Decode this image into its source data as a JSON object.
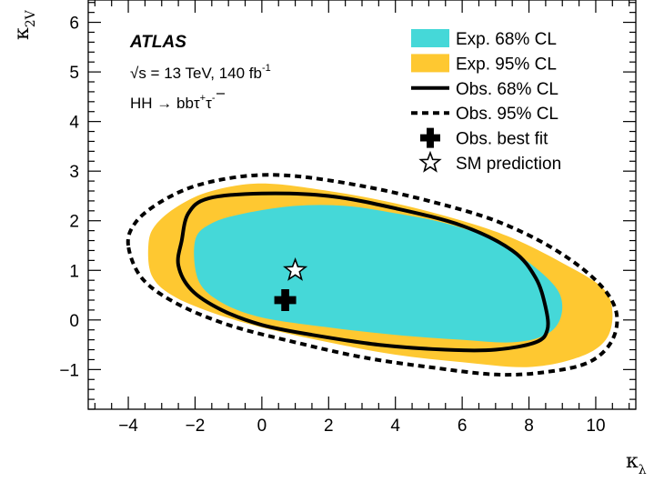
{
  "chart_data": {
    "type": "contour",
    "experiment": "ATLAS",
    "energy_line": "√s  = 13 TeV, 140 fb",
    "lumi_exponent": "-1",
    "process_prefix": "HH → b",
    "process_b_bar": "b",
    "process_tau": "τ",
    "process_plus": "+",
    "process_minus": "-",
    "xlabel": "κ",
    "xlabel_sub": "λ",
    "ylabel": "κ",
    "ylabel_sub": "2V",
    "xlim": [
      -5.2,
      11.2
    ],
    "ylim": [
      -1.8,
      6.45
    ],
    "x_ticks": [
      -4,
      -2,
      0,
      2,
      4,
      6,
      8,
      10
    ],
    "x_tick_labels": [
      "−4",
      "−2",
      "0",
      "2",
      "4",
      "6",
      "8",
      "10"
    ],
    "y_ticks": [
      -1,
      0,
      1,
      2,
      3,
      4,
      5,
      6
    ],
    "y_tick_labels": [
      "−1",
      "0",
      "1",
      "2",
      "3",
      "4",
      "5",
      "6"
    ],
    "legend": {
      "position": "top-right",
      "entries": [
        {
          "label": "Exp. 68% CL",
          "style": "fill",
          "color": "#45d8d8"
        },
        {
          "label": "Exp. 95% CL",
          "style": "fill",
          "color": "#fec831"
        },
        {
          "label": "Obs. 68% CL",
          "style": "solid-line",
          "color": "#000000"
        },
        {
          "label": "Obs. 95% CL",
          "style": "dashed-line",
          "color": "#000000"
        },
        {
          "label": "Obs. best fit",
          "style": "cross-marker",
          "color": "#000000"
        },
        {
          "label": "SM prediction",
          "style": "star-marker",
          "color": "#000000"
        }
      ]
    },
    "best_fit": {
      "x": 0.7,
      "y": 0.4
    },
    "sm_prediction": {
      "x": 1.0,
      "y": 1.0
    },
    "contours": {
      "exp95": [
        [
          -3.4,
          1.5
        ],
        [
          -3.2,
          1.9
        ],
        [
          -2.5,
          2.3
        ],
        [
          -1.5,
          2.6
        ],
        [
          0,
          2.75
        ],
        [
          2,
          2.6
        ],
        [
          4,
          2.35
        ],
        [
          6,
          2.0
        ],
        [
          7.5,
          1.65
        ],
        [
          9,
          1.15
        ],
        [
          10.2,
          0.65
        ],
        [
          10.5,
          0.15
        ],
        [
          10.3,
          -0.4
        ],
        [
          9.5,
          -0.75
        ],
        [
          8,
          -0.95
        ],
        [
          6,
          -0.85
        ],
        [
          4,
          -0.7
        ],
        [
          2,
          -0.45
        ],
        [
          0,
          -0.15
        ],
        [
          -1.5,
          0.15
        ],
        [
          -2.7,
          0.5
        ],
        [
          -3.3,
          0.9
        ]
      ],
      "exp68": [
        [
          -2,
          1.6
        ],
        [
          -1.5,
          1.95
        ],
        [
          -0.5,
          2.15
        ],
        [
          1,
          2.3
        ],
        [
          2.5,
          2.3
        ],
        [
          4,
          2.15
        ],
        [
          5.5,
          1.95
        ],
        [
          7,
          1.6
        ],
        [
          8.2,
          1.05
        ],
        [
          8.9,
          0.55
        ],
        [
          8.95,
          0.05
        ],
        [
          8.5,
          -0.3
        ],
        [
          7.5,
          -0.45
        ],
        [
          6,
          -0.4
        ],
        [
          4,
          -0.3
        ],
        [
          2,
          -0.15
        ],
        [
          0,
          0.05
        ],
        [
          -1.2,
          0.35
        ],
        [
          -1.9,
          0.8
        ]
      ],
      "obs68": [
        [
          -2.4,
          1.6
        ],
        [
          -2.2,
          2.15
        ],
        [
          -1.6,
          2.45
        ],
        [
          0,
          2.55
        ],
        [
          2,
          2.5
        ],
        [
          4,
          2.25
        ],
        [
          6,
          1.9
        ],
        [
          7.5,
          1.4
        ],
        [
          8.2,
          0.85
        ],
        [
          8.5,
          0.25
        ],
        [
          8.55,
          -0.2
        ],
        [
          8.2,
          -0.45
        ],
        [
          7,
          -0.6
        ],
        [
          5.5,
          -0.6
        ],
        [
          3.5,
          -0.5
        ],
        [
          1.5,
          -0.3
        ],
        [
          0,
          -0.1
        ],
        [
          -1.2,
          0.2
        ],
        [
          -2.1,
          0.6
        ],
        [
          -2.5,
          1.1
        ]
      ],
      "obs95": [
        [
          -4,
          1.5
        ],
        [
          -3.8,
          1.95
        ],
        [
          -3.1,
          2.35
        ],
        [
          -2,
          2.7
        ],
        [
          -0.5,
          2.9
        ],
        [
          1,
          2.9
        ],
        [
          3,
          2.7
        ],
        [
          5,
          2.4
        ],
        [
          7,
          2.0
        ],
        [
          8.7,
          1.45
        ],
        [
          10,
          0.8
        ],
        [
          10.6,
          0.2
        ],
        [
          10.5,
          -0.4
        ],
        [
          9.8,
          -0.85
        ],
        [
          8.5,
          -1.05
        ],
        [
          7,
          -1.1
        ],
        [
          5,
          -0.95
        ],
        [
          3,
          -0.75
        ],
        [
          1,
          -0.45
        ],
        [
          -1,
          -0.1
        ],
        [
          -2.6,
          0.35
        ],
        [
          -3.6,
          0.85
        ]
      ]
    }
  },
  "colors": {
    "exp68": "#45d8d8",
    "exp95": "#fec831",
    "line": "#000000"
  }
}
